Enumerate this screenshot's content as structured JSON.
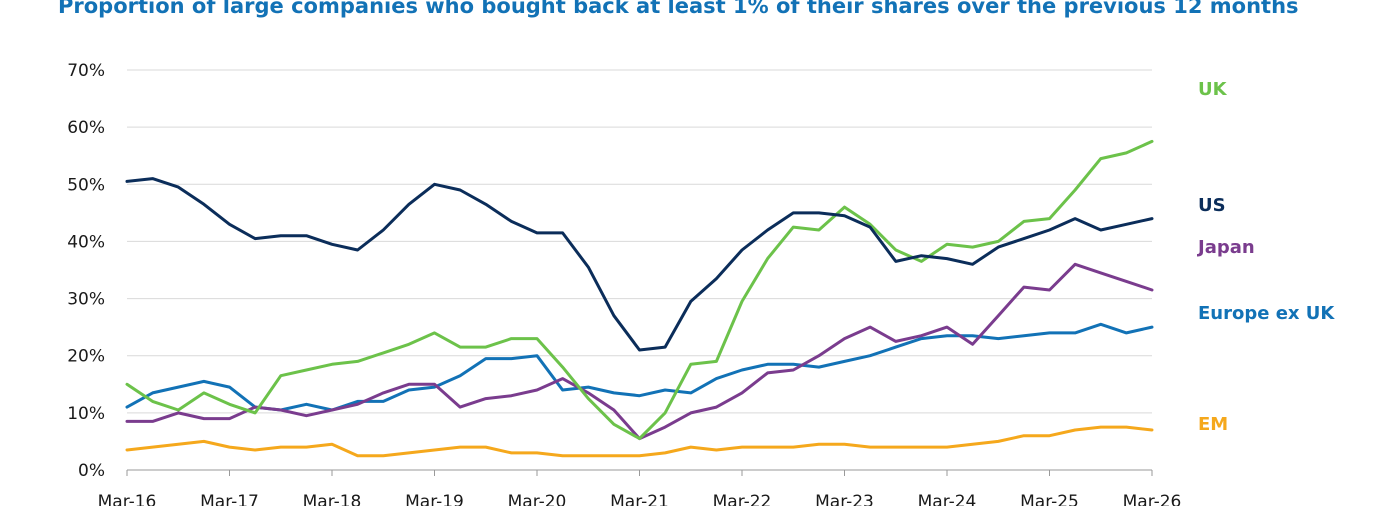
{
  "chart_data": {
    "type": "line",
    "title": "Proportion of large companies who bought back at least 1% of their shares over the previous 12 months",
    "ylim": [
      0,
      0.7
    ],
    "yticks": [
      0,
      0.1,
      0.2,
      0.3,
      0.4,
      0.5,
      0.6,
      0.7
    ],
    "ytick_labels": [
      "0%",
      "10%",
      "20%",
      "30%",
      "40%",
      "50%",
      "60%",
      "70%"
    ],
    "xlim": [
      2016.17,
      2026.17
    ],
    "xticks": [
      2016.17,
      2017.17,
      2018.17,
      2019.17,
      2020.17,
      2021.17,
      2022.17,
      2023.17,
      2024.17,
      2025.17,
      2026.17
    ],
    "xtick_labels": [
      "Mar-16",
      "Mar-17",
      "Mar-18",
      "Mar-19",
      "Mar-20",
      "Mar-21",
      "Mar-22",
      "Mar-23",
      "Mar-24",
      "Mar-25",
      "Mar-26"
    ],
    "grid": "horizontal",
    "legend": "right, labels at line ends",
    "x": [
      2016.17,
      2016.42,
      2016.67,
      2016.92,
      2017.17,
      2017.42,
      2017.67,
      2017.92,
      2018.17,
      2018.42,
      2018.67,
      2018.92,
      2019.17,
      2019.42,
      2019.67,
      2019.92,
      2020.17,
      2020.42,
      2020.67,
      2020.92,
      2021.17,
      2021.42,
      2021.67,
      2021.92,
      2022.17,
      2022.42,
      2022.67,
      2022.92,
      2023.17,
      2023.42,
      2023.67,
      2023.92,
      2024.17,
      2024.42,
      2024.67,
      2024.92,
      2025.17,
      2025.42,
      2025.67,
      2025.92,
      2026.17
    ],
    "series": [
      {
        "name": "UK",
        "color": "#6cc24a",
        "values": [
          0.15,
          0.12,
          0.105,
          0.135,
          0.115,
          0.1,
          0.165,
          0.175,
          0.185,
          0.19,
          0.205,
          0.22,
          0.24,
          0.215,
          0.215,
          0.23,
          0.23,
          0.18,
          0.125,
          0.08,
          0.055,
          0.1,
          0.185,
          0.19,
          0.295,
          0.37,
          0.425,
          0.42,
          0.46,
          0.43,
          0.385,
          0.365,
          0.395,
          0.39,
          0.4,
          0.435,
          0.44,
          0.49,
          0.545,
          0.555,
          0.575
        ]
      },
      {
        "name": "US",
        "color": "#0b2d5a",
        "values": [
          0.505,
          0.51,
          0.495,
          0.465,
          0.43,
          0.405,
          0.41,
          0.41,
          0.395,
          0.385,
          0.42,
          0.465,
          0.5,
          0.49,
          0.465,
          0.435,
          0.415,
          0.415,
          0.355,
          0.27,
          0.21,
          0.215,
          0.295,
          0.335,
          0.385,
          0.42,
          0.45,
          0.45,
          0.445,
          0.425,
          0.365,
          0.375,
          0.37,
          0.36,
          0.39,
          0.405,
          0.42,
          0.44,
          0.42,
          0.43,
          0.44
        ]
      },
      {
        "name": "Japan",
        "color": "#7a3c8e",
        "values": [
          0.085,
          0.085,
          0.1,
          0.09,
          0.09,
          0.11,
          0.105,
          0.095,
          0.105,
          0.115,
          0.135,
          0.15,
          0.15,
          0.11,
          0.125,
          0.13,
          0.14,
          0.16,
          0.135,
          0.105,
          0.055,
          0.075,
          0.1,
          0.11,
          0.135,
          0.17,
          0.175,
          0.2,
          0.23,
          0.25,
          0.225,
          0.235,
          0.25,
          0.22,
          0.27,
          0.32,
          0.315,
          0.36,
          0.345,
          0.33,
          0.315
        ]
      },
      {
        "name": "Europe ex UK",
        "color": "#1272b6",
        "values": [
          0.11,
          0.135,
          0.145,
          0.155,
          0.145,
          0.11,
          0.105,
          0.115,
          0.105,
          0.12,
          0.12,
          0.14,
          0.145,
          0.165,
          0.195,
          0.195,
          0.2,
          0.14,
          0.145,
          0.135,
          0.13,
          0.14,
          0.135,
          0.16,
          0.175,
          0.185,
          0.185,
          0.18,
          0.19,
          0.2,
          0.215,
          0.23,
          0.235,
          0.235,
          0.23,
          0.235,
          0.24,
          0.24,
          0.255,
          0.24,
          0.25
        ]
      },
      {
        "name": "EM",
        "color": "#f5a81c",
        "values": [
          0.035,
          0.04,
          0.045,
          0.05,
          0.04,
          0.035,
          0.04,
          0.04,
          0.045,
          0.025,
          0.025,
          0.03,
          0.035,
          0.04,
          0.04,
          0.03,
          0.03,
          0.025,
          0.025,
          0.025,
          0.025,
          0.03,
          0.04,
          0.035,
          0.04,
          0.04,
          0.04,
          0.045,
          0.045,
          0.04,
          0.04,
          0.04,
          0.04,
          0.045,
          0.05,
          0.06,
          0.06,
          0.07,
          0.075,
          0.075,
          0.07
        ]
      }
    ]
  }
}
